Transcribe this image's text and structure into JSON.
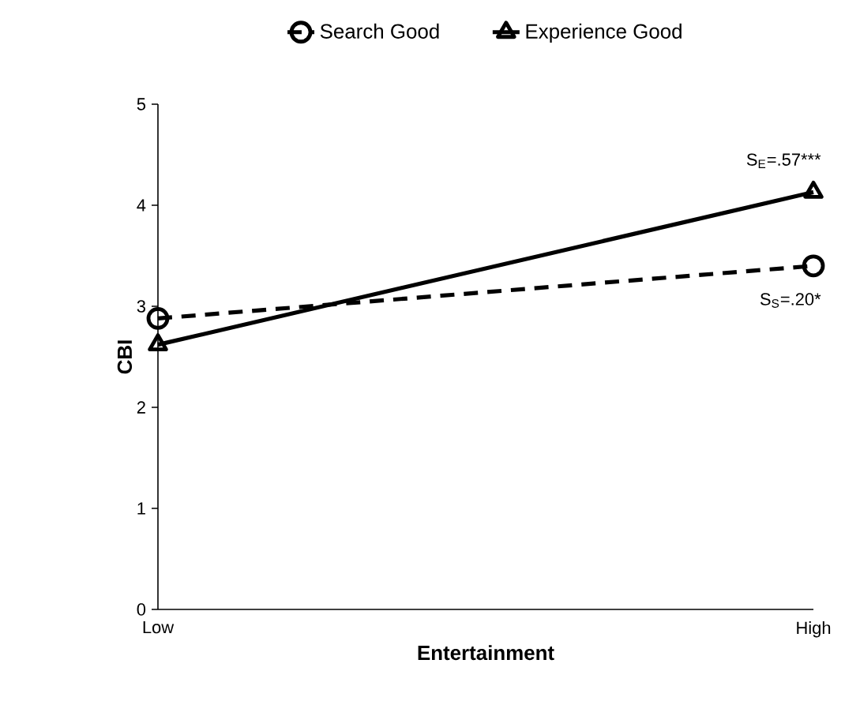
{
  "chart_data": {
    "type": "line",
    "xlabel": "Entertainment",
    "ylabel": "CBI",
    "categories": [
      "Low",
      "High"
    ],
    "series": [
      {
        "name": "Search Good",
        "color": "#000000",
        "values": [
          2.88,
          3.4
        ],
        "marker": "circle",
        "line_style": "dashed"
      },
      {
        "name": "Experience Good",
        "color": "#000000",
        "values": [
          2.62,
          4.13
        ],
        "marker": "triangle",
        "line_style": "solid"
      }
    ],
    "ylim": [
      0,
      5
    ],
    "yticks": [
      0,
      1,
      2,
      3,
      4,
      5
    ],
    "grid": false,
    "legend": "top",
    "annotations": [
      {
        "text": "S$_{E}$=.57***",
        "x": "High",
        "y": 4.13
      },
      {
        "text": "S$_{S}$=.20*",
        "x": "High",
        "y": 3.4
      }
    ]
  }
}
